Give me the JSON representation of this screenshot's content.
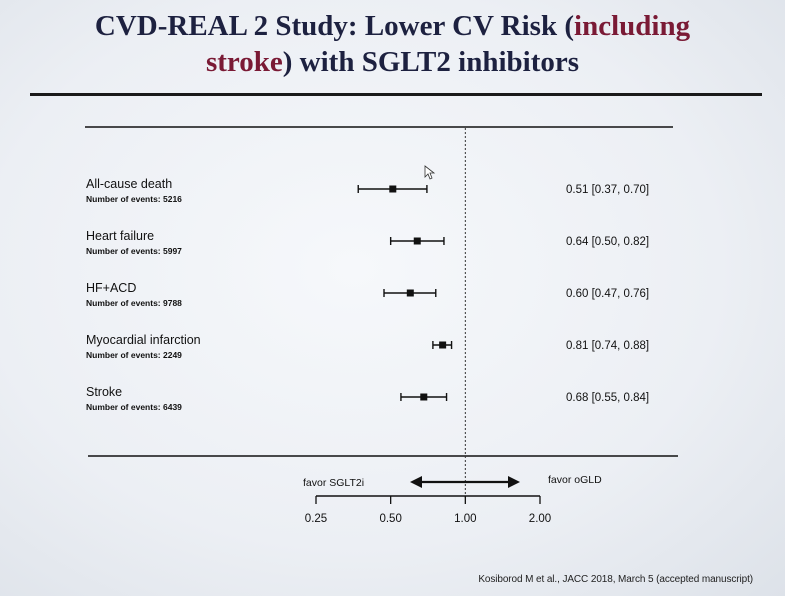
{
  "title": {
    "part1": "CVD-REAL 2 Study: Lower CV Risk (",
    "highlight1": "including",
    "highlight2": "stroke",
    "part2": ") with SGLT2 inhibitors"
  },
  "citation": "Kosiborod M et al., JACC 2018, March 5 (accepted manuscript)",
  "colors": {
    "title": "#1d2140",
    "highlight": "#7a1a35",
    "ink": "#111111"
  },
  "chart_data": {
    "type": "forest",
    "xscale": "log",
    "xlim": [
      0.25,
      2.0
    ],
    "xticks": [
      0.25,
      0.5,
      1.0,
      2.0
    ],
    "xtick_labels": [
      "0.25",
      "0.50",
      "1.00",
      "2.00"
    ],
    "reference_line": 1.0,
    "arrow_left_label": "favor SGLT2i",
    "arrow_right_label": "favor oGLD",
    "rows": [
      {
        "label": "All-cause death",
        "events_label": "Number of events: 5216",
        "hr": 0.51,
        "lo": 0.37,
        "hi": 0.7,
        "ci_text": "0.51 [0.37, 0.70]"
      },
      {
        "label": "Heart failure",
        "events_label": "Number of events: 5997",
        "hr": 0.64,
        "lo": 0.5,
        "hi": 0.82,
        "ci_text": "0.64 [0.50, 0.82]"
      },
      {
        "label": "HF+ACD",
        "events_label": "Number of events: 9788",
        "hr": 0.6,
        "lo": 0.47,
        "hi": 0.76,
        "ci_text": "0.60 [0.47, 0.76]"
      },
      {
        "label": "Myocardial infarction",
        "events_label": "Number of events: 2249",
        "hr": 0.81,
        "lo": 0.74,
        "hi": 0.88,
        "ci_text": "0.81 [0.74, 0.88]"
      },
      {
        "label": "Stroke",
        "events_label": "Number of events: 6439",
        "hr": 0.68,
        "lo": 0.55,
        "hi": 0.84,
        "ci_text": "0.68 [0.55, 0.84]"
      }
    ]
  }
}
